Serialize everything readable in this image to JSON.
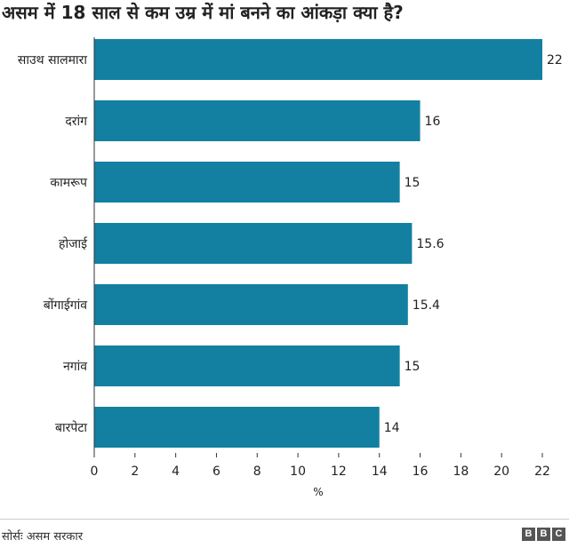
{
  "chart_data": {
    "type": "bar",
    "orientation": "horizontal",
    "title": "असम में 18 साल से कम उम्र में मां बनने का आंकड़ा क्या है?",
    "categories": [
      "साउथ सालमारा",
      "दरांग",
      "कामरूप",
      "होजाई",
      "बोंगाईगांव",
      "नगांव",
      "बारपेटा"
    ],
    "values": [
      22,
      16,
      15,
      15.6,
      15.4,
      15,
      14
    ],
    "value_labels": [
      "22",
      "16",
      "15",
      "15.6",
      "15.4",
      "15",
      "14"
    ],
    "xlabel": "%",
    "xlim": [
      0,
      22
    ],
    "xticks": [
      0,
      2,
      4,
      6,
      8,
      10,
      12,
      14,
      16,
      18,
      20,
      22
    ],
    "bar_color": "#1380a1",
    "grid": false
  },
  "source": "सोर्सः असम सरकार",
  "logo": [
    "B",
    "B",
    "C"
  ]
}
